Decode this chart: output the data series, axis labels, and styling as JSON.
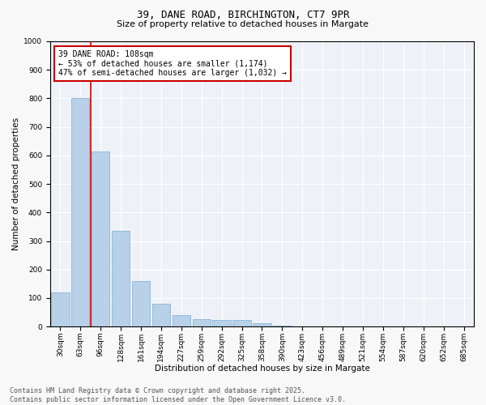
{
  "title_line1": "39, DANE ROAD, BIRCHINGTON, CT7 9PR",
  "title_line2": "Size of property relative to detached houses in Margate",
  "xlabel": "Distribution of detached houses by size in Margate",
  "ylabel": "Number of detached properties",
  "bar_color": "#b8d0e8",
  "bar_edge_color": "#7aafd4",
  "background_color": "#eef2f8",
  "grid_color": "#ffffff",
  "categories": [
    "30sqm",
    "63sqm",
    "96sqm",
    "128sqm",
    "161sqm",
    "194sqm",
    "227sqm",
    "259sqm",
    "292sqm",
    "325sqm",
    "358sqm",
    "390sqm",
    "423sqm",
    "456sqm",
    "489sqm",
    "521sqm",
    "554sqm",
    "587sqm",
    "620sqm",
    "652sqm",
    "685sqm"
  ],
  "values": [
    120,
    800,
    615,
    335,
    160,
    80,
    40,
    27,
    22,
    22,
    12,
    3,
    0,
    0,
    0,
    0,
    0,
    0,
    0,
    0,
    0
  ],
  "ylim": [
    0,
    1000
  ],
  "yticks": [
    0,
    100,
    200,
    300,
    400,
    500,
    600,
    700,
    800,
    900,
    1000
  ],
  "property_line_color": "#cc0000",
  "annotation_text": "39 DANE ROAD: 108sqm\n← 53% of detached houses are smaller (1,174)\n47% of semi-detached houses are larger (1,032) →",
  "annotation_box_color": "#ffffff",
  "annotation_box_edge": "#cc0000",
  "footer_line1": "Contains HM Land Registry data © Crown copyright and database right 2025.",
  "footer_line2": "Contains public sector information licensed under the Open Government Licence v3.0.",
  "title_fontsize": 9,
  "subtitle_fontsize": 8,
  "axis_label_fontsize": 7.5,
  "tick_fontsize": 6.5,
  "annotation_fontsize": 7,
  "footer_fontsize": 6
}
